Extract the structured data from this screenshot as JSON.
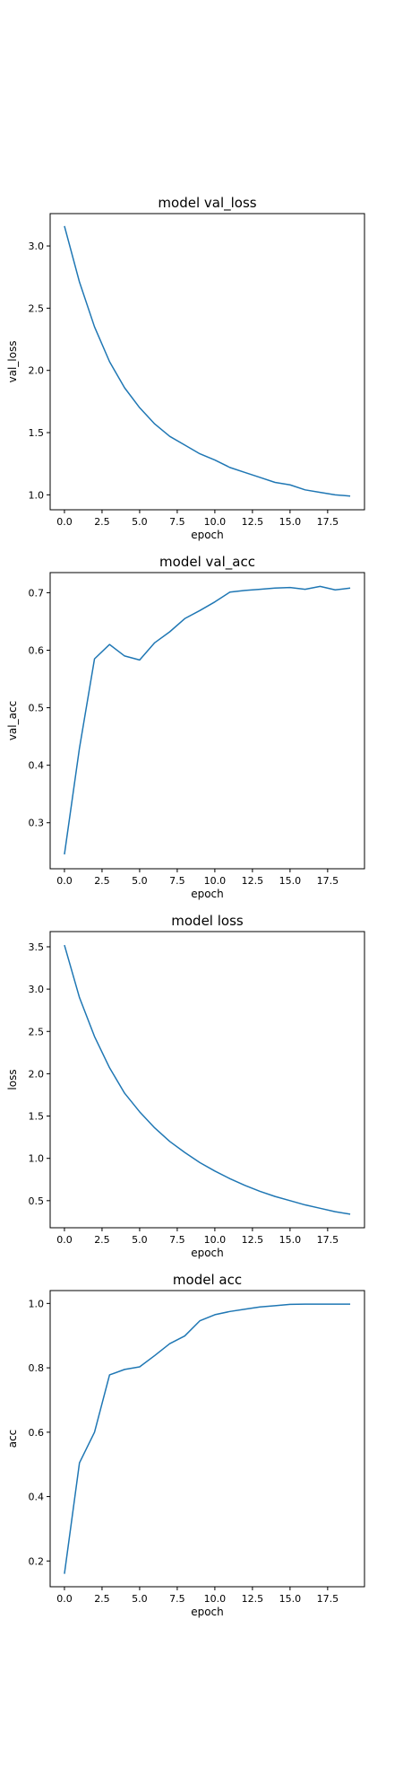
{
  "chart_data": [
    {
      "type": "line",
      "title": "model val_loss",
      "xlabel": "epoch",
      "ylabel": "val_loss",
      "x": [
        0,
        1,
        2,
        3,
        4,
        5,
        6,
        7,
        8,
        9,
        10,
        11,
        12,
        13,
        14,
        15,
        16,
        17,
        18,
        19
      ],
      "series": [
        {
          "values": [
            3.16,
            2.71,
            2.35,
            2.07,
            1.86,
            1.7,
            1.57,
            1.47,
            1.4,
            1.33,
            1.28,
            1.22,
            1.18,
            1.14,
            1.1,
            1.08,
            1.04,
            1.02,
            1.0,
            0.99
          ],
          "color": "#1f77b4"
        }
      ],
      "xlim": [
        -0.95,
        19.95
      ],
      "ylim": [
        0.88,
        3.26
      ],
      "xticks": [
        0,
        2.5,
        5,
        7.5,
        10,
        12.5,
        15,
        17.5
      ],
      "xtick_labels": [
        "0.0",
        "2.5",
        "5.0",
        "7.5",
        "10.0",
        "12.5",
        "15.0",
        "17.5"
      ],
      "yticks": [
        1,
        1.5,
        2,
        2.5,
        3
      ],
      "ytick_labels": [
        "1.0",
        "1.5",
        "2.0",
        "2.5",
        "3.0"
      ],
      "grid": false
    },
    {
      "type": "line",
      "title": "model val_acc",
      "xlabel": "epoch",
      "ylabel": "val_acc",
      "x": [
        0,
        1,
        2,
        3,
        4,
        5,
        6,
        7,
        8,
        9,
        10,
        11,
        12,
        13,
        14,
        15,
        16,
        17,
        18,
        19
      ],
      "series": [
        {
          "values": [
            0.245,
            0.43,
            0.585,
            0.61,
            0.59,
            0.583,
            0.613,
            0.632,
            0.655,
            0.669,
            0.684,
            0.701,
            0.704,
            0.706,
            0.708,
            0.709,
            0.706,
            0.711,
            0.705,
            0.708
          ],
          "color": "#1f77b4"
        }
      ],
      "xlim": [
        -0.95,
        19.95
      ],
      "ylim": [
        0.22,
        0.735
      ],
      "xticks": [
        0,
        2.5,
        5,
        7.5,
        10,
        12.5,
        15,
        17.5
      ],
      "xtick_labels": [
        "0.0",
        "2.5",
        "5.0",
        "7.5",
        "10.0",
        "12.5",
        "15.0",
        "17.5"
      ],
      "yticks": [
        0.3,
        0.4,
        0.5,
        0.6,
        0.7
      ],
      "ytick_labels": [
        "0.3",
        "0.4",
        "0.5",
        "0.6",
        "0.7"
      ],
      "grid": false
    },
    {
      "type": "line",
      "title": "model loss",
      "xlabel": "epoch",
      "ylabel": "loss",
      "x": [
        0,
        1,
        2,
        3,
        4,
        5,
        6,
        7,
        8,
        9,
        10,
        11,
        12,
        13,
        14,
        15,
        16,
        17,
        18,
        19
      ],
      "series": [
        {
          "values": [
            3.52,
            2.9,
            2.44,
            2.07,
            1.77,
            1.55,
            1.36,
            1.2,
            1.07,
            0.95,
            0.85,
            0.76,
            0.68,
            0.61,
            0.55,
            0.5,
            0.45,
            0.41,
            0.37,
            0.34
          ],
          "color": "#1f77b4"
        }
      ],
      "xlim": [
        -0.95,
        19.95
      ],
      "ylim": [
        0.18,
        3.68
      ],
      "xticks": [
        0,
        2.5,
        5,
        7.5,
        10,
        12.5,
        15,
        17.5
      ],
      "xtick_labels": [
        "0.0",
        "2.5",
        "5.0",
        "7.5",
        "10.0",
        "12.5",
        "15.0",
        "17.5"
      ],
      "yticks": [
        0.5,
        1,
        1.5,
        2,
        2.5,
        3,
        3.5
      ],
      "ytick_labels": [
        "0.5",
        "1.0",
        "1.5",
        "2.0",
        "2.5",
        "3.0",
        "3.5"
      ],
      "grid": false
    },
    {
      "type": "line",
      "title": "model acc",
      "xlabel": "epoch",
      "ylabel": "acc",
      "x": [
        0,
        1,
        2,
        3,
        4,
        5,
        6,
        7,
        8,
        9,
        10,
        11,
        12,
        13,
        14,
        15,
        16,
        17,
        18,
        19
      ],
      "series": [
        {
          "values": [
            0.16,
            0.505,
            0.6,
            0.778,
            0.795,
            0.803,
            0.838,
            0.875,
            0.899,
            0.946,
            0.965,
            0.975,
            0.982,
            0.989,
            0.993,
            0.997,
            0.998,
            0.998,
            0.998,
            0.998
          ],
          "color": "#1f77b4"
        }
      ],
      "xlim": [
        -0.95,
        19.95
      ],
      "ylim": [
        0.12,
        1.04
      ],
      "xticks": [
        0,
        2.5,
        5,
        7.5,
        10,
        12.5,
        15,
        17.5
      ],
      "xtick_labels": [
        "0.0",
        "2.5",
        "5.0",
        "7.5",
        "10.0",
        "12.5",
        "15.0",
        "17.5"
      ],
      "yticks": [
        0.2,
        0.4,
        0.6,
        0.8,
        1
      ],
      "ytick_labels": [
        "0.2",
        "0.4",
        "0.6",
        "0.8",
        "1.0"
      ],
      "grid": false
    }
  ]
}
